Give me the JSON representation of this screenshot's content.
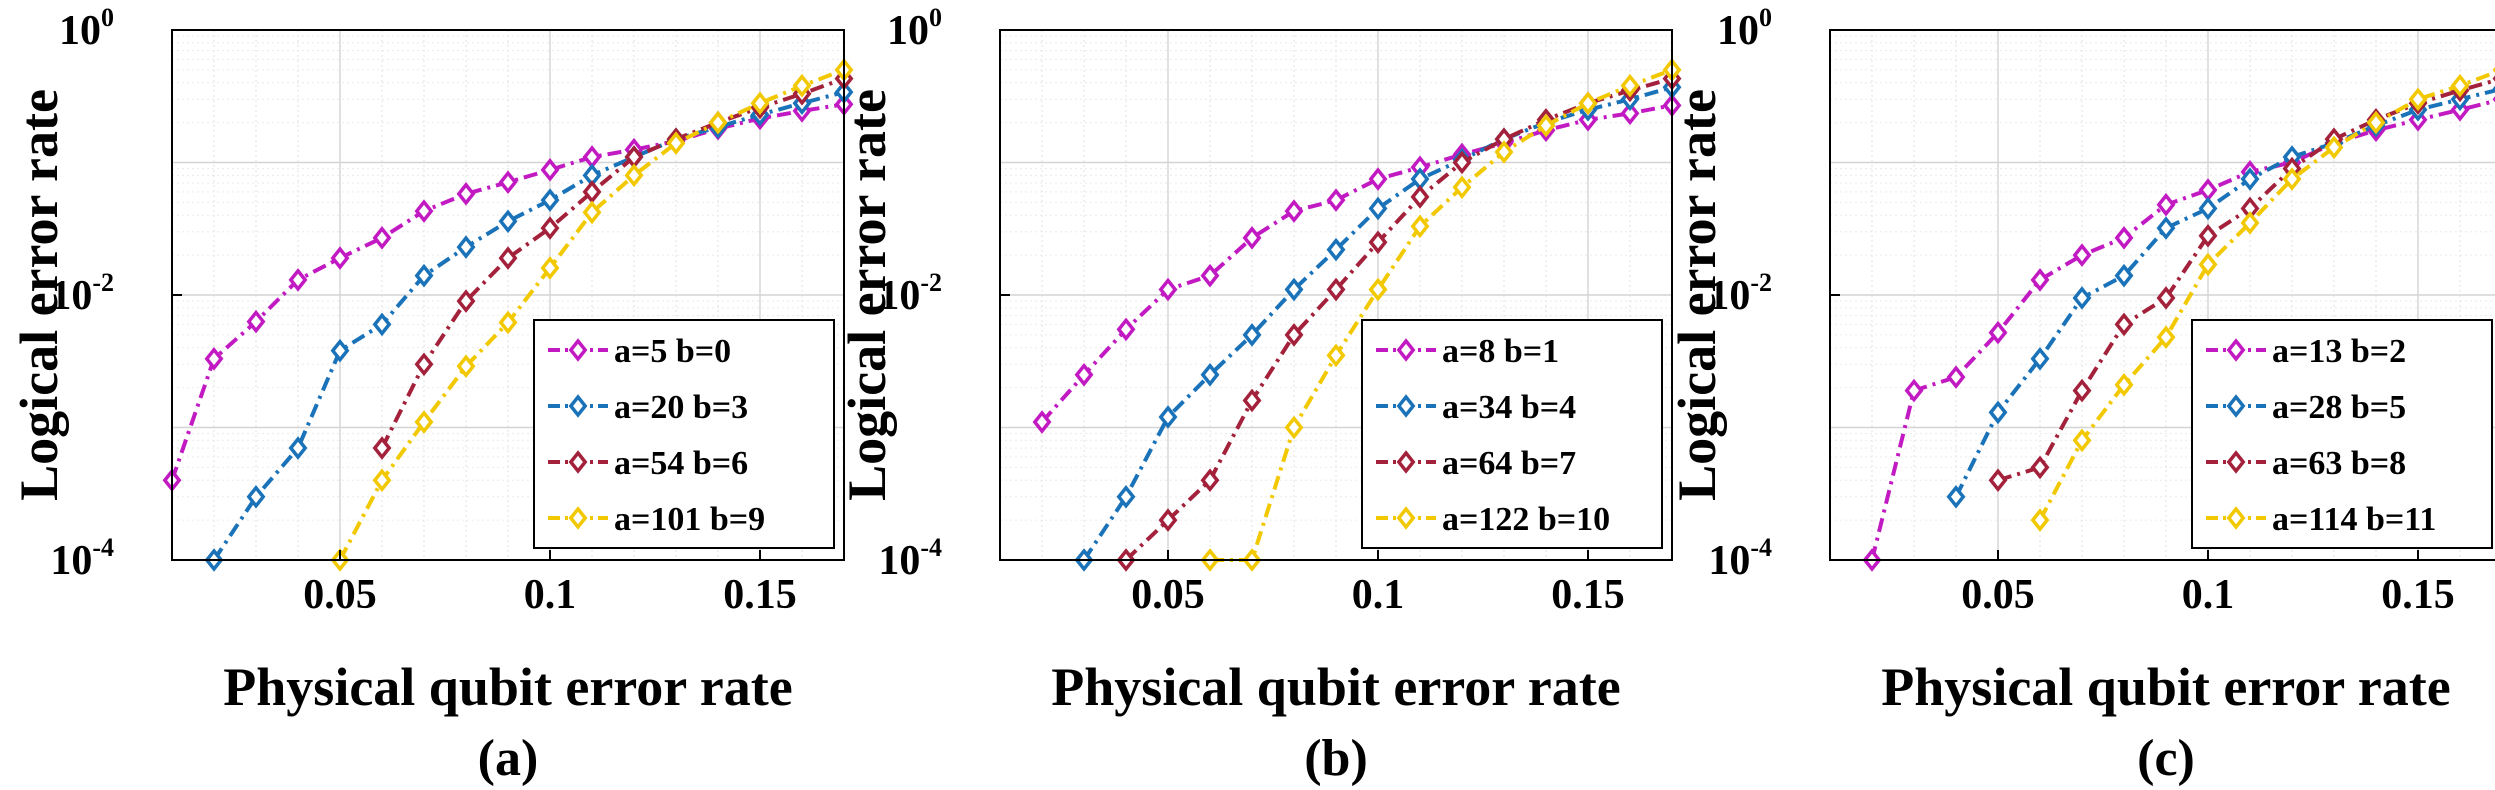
{
  "chart_data": [
    {
      "type": "line",
      "panel_label": "(a)",
      "xlabel": "Physical qubit error rate",
      "ylabel": "Logical error rate",
      "xscale": "linear",
      "yscale": "log",
      "xlim": [
        0.01,
        0.17
      ],
      "ylim": [
        0.0001,
        1
      ],
      "xticks": [
        0.05,
        0.1,
        0.15
      ],
      "xtick_labels": [
        "0.05",
        "0.1",
        "0.15"
      ],
      "yticks": [
        {
          "base": "10",
          "exp": "-4"
        },
        {
          "base": "10",
          "exp": "-2"
        },
        {
          "base": "10",
          "exp": "0"
        }
      ],
      "grid": true,
      "legend_position": "lower-right",
      "series": [
        {
          "name": "a=5 b=0",
          "color": "#C21AC2",
          "marker": "diamond",
          "line": "dash-dot",
          "x": [
            0.01,
            0.02,
            0.03,
            0.04,
            0.05,
            0.06,
            0.07,
            0.08,
            0.09,
            0.1,
            0.11,
            0.12,
            0.13,
            0.14,
            0.15,
            0.16,
            0.17
          ],
          "y": [
            0.0004,
            0.0033,
            0.0063,
            0.013,
            0.019,
            0.027,
            0.043,
            0.058,
            0.071,
            0.088,
            0.11,
            0.125,
            0.145,
            0.18,
            0.215,
            0.245,
            0.275
          ]
        },
        {
          "name": "a=20 b=3",
          "color": "#1A72B8",
          "marker": "diamond",
          "line": "dash-dot",
          "x": [
            0.02,
            0.03,
            0.04,
            0.05,
            0.06,
            0.07,
            0.08,
            0.09,
            0.1,
            0.11,
            0.12,
            0.13,
            0.14,
            0.15,
            0.16,
            0.17
          ],
          "y": [
            0.0001,
            0.0003,
            0.0007,
            0.0038,
            0.006,
            0.014,
            0.023,
            0.036,
            0.052,
            0.08,
            0.11,
            0.15,
            0.185,
            0.23,
            0.28,
            0.34
          ]
        },
        {
          "name": "a=54 b=6",
          "color": "#A3213A",
          "marker": "diamond",
          "line": "dash-dot",
          "x": [
            0.06,
            0.07,
            0.08,
            0.09,
            0.1,
            0.11,
            0.12,
            0.13,
            0.14,
            0.15,
            0.16,
            0.17
          ],
          "y": [
            0.0007,
            0.003,
            0.009,
            0.019,
            0.032,
            0.06,
            0.11,
            0.15,
            0.2,
            0.26,
            0.33,
            0.43
          ]
        },
        {
          "name": "a=101 b=9",
          "color": "#F2C800",
          "marker": "diamond",
          "line": "dash-dot",
          "x": [
            0.05,
            0.06,
            0.07,
            0.08,
            0.09,
            0.1,
            0.11,
            0.12,
            0.13,
            0.14,
            0.15,
            0.16,
            0.17
          ],
          "y": [
            0.0001,
            0.0004,
            0.0011,
            0.0029,
            0.0062,
            0.016,
            0.042,
            0.08,
            0.14,
            0.2,
            0.28,
            0.38,
            0.5
          ]
        }
      ]
    },
    {
      "type": "line",
      "panel_label": "(b)",
      "xlabel": "Physical qubit error rate",
      "ylabel": "Logical error rate",
      "xscale": "linear",
      "yscale": "log",
      "xlim": [
        0.01,
        0.17
      ],
      "ylim": [
        0.0001,
        1
      ],
      "xticks": [
        0.05,
        0.1,
        0.15
      ],
      "xtick_labels": [
        "0.05",
        "0.1",
        "0.15"
      ],
      "yticks": [
        {
          "base": "10",
          "exp": "-4"
        },
        {
          "base": "10",
          "exp": "-2"
        },
        {
          "base": "10",
          "exp": "0"
        }
      ],
      "grid": true,
      "legend_position": "lower-right",
      "series": [
        {
          "name": "a=8 b=1",
          "color": "#C21AC2",
          "marker": "diamond",
          "line": "dash-dot",
          "x": [
            0.02,
            0.03,
            0.04,
            0.05,
            0.06,
            0.07,
            0.08,
            0.09,
            0.1,
            0.11,
            0.12,
            0.13,
            0.14,
            0.15,
            0.16,
            0.17
          ],
          "y": [
            0.0011,
            0.0025,
            0.0055,
            0.011,
            0.014,
            0.027,
            0.043,
            0.052,
            0.075,
            0.092,
            0.115,
            0.14,
            0.175,
            0.21,
            0.235,
            0.27
          ]
        },
        {
          "name": "a=34 b=4",
          "color": "#1A72B8",
          "marker": "diamond",
          "line": "dash-dot",
          "x": [
            0.03,
            0.04,
            0.05,
            0.06,
            0.07,
            0.08,
            0.09,
            0.1,
            0.11,
            0.12,
            0.13,
            0.14,
            0.15,
            0.16,
            0.17
          ],
          "y": [
            0.0001,
            0.0003,
            0.0012,
            0.0025,
            0.005,
            0.011,
            0.022,
            0.045,
            0.075,
            0.105,
            0.15,
            0.2,
            0.25,
            0.3,
            0.37
          ]
        },
        {
          "name": "a=64 b=7",
          "color": "#A3213A",
          "marker": "diamond",
          "line": "dash-dot",
          "x": [
            0.04,
            0.05,
            0.06,
            0.07,
            0.08,
            0.09,
            0.1,
            0.11,
            0.12,
            0.13,
            0.14,
            0.15,
            0.16,
            0.17
          ],
          "y": [
            0.0001,
            0.0002,
            0.0004,
            0.0016,
            0.005,
            0.011,
            0.025,
            0.055,
            0.1,
            0.15,
            0.21,
            0.28,
            0.35,
            0.43
          ]
        },
        {
          "name": "a=122 b=10",
          "color": "#F2C800",
          "marker": "diamond",
          "line": "dash-dot",
          "x": [
            0.06,
            0.07,
            0.08,
            0.09,
            0.1,
            0.11,
            0.12,
            0.13,
            0.14,
            0.15,
            0.16,
            0.17
          ],
          "y": [
            0.0001,
            0.0001,
            0.001,
            0.0035,
            0.011,
            0.033,
            0.065,
            0.12,
            0.19,
            0.28,
            0.38,
            0.5
          ]
        }
      ]
    },
    {
      "type": "line",
      "panel_label": "(c)",
      "xlabel": "Physical qubit error rate",
      "ylabel": "Logical error rate",
      "xscale": "linear",
      "yscale": "log",
      "xlim": [
        0.01,
        0.17
      ],
      "ylim": [
        0.0001,
        1
      ],
      "xticks": [
        0.05,
        0.1,
        0.15
      ],
      "xtick_labels": [
        "0.05",
        "0.1",
        "0.15"
      ],
      "yticks": [
        {
          "base": "10",
          "exp": "-4"
        },
        {
          "base": "10",
          "exp": "-2"
        },
        {
          "base": "10",
          "exp": "0"
        }
      ],
      "grid": true,
      "legend_position": "lower-right",
      "series": [
        {
          "name": "a=13 b=2",
          "color": "#C21AC2",
          "marker": "diamond",
          "line": "dash-dot",
          "x": [
            0.02,
            0.03,
            0.04,
            0.05,
            0.06,
            0.07,
            0.08,
            0.09,
            0.1,
            0.11,
            0.12,
            0.13,
            0.14,
            0.15,
            0.16,
            0.17
          ],
          "y": [
            0.0001,
            0.0019,
            0.0024,
            0.0052,
            0.013,
            0.02,
            0.027,
            0.048,
            0.062,
            0.085,
            0.1,
            0.14,
            0.175,
            0.21,
            0.25,
            0.3
          ]
        },
        {
          "name": "a=28 b=5",
          "color": "#1A72B8",
          "marker": "diamond",
          "line": "dash-dot",
          "x": [
            0.04,
            0.05,
            0.06,
            0.07,
            0.08,
            0.09,
            0.1,
            0.11,
            0.12,
            0.13,
            0.14,
            0.15,
            0.16,
            0.17
          ],
          "y": [
            0.0003,
            0.0013,
            0.0033,
            0.0095,
            0.014,
            0.032,
            0.045,
            0.075,
            0.11,
            0.14,
            0.19,
            0.25,
            0.3,
            0.36
          ]
        },
        {
          "name": "a=63 b=8",
          "color": "#A3213A",
          "marker": "diamond",
          "line": "dash-dot",
          "x": [
            0.05,
            0.06,
            0.07,
            0.08,
            0.09,
            0.1,
            0.11,
            0.12,
            0.13,
            0.14,
            0.15,
            0.16,
            0.17
          ],
          "y": [
            0.0004,
            0.0005,
            0.0019,
            0.006,
            0.0095,
            0.028,
            0.045,
            0.09,
            0.15,
            0.21,
            0.28,
            0.35,
            0.43
          ]
        },
        {
          "name": "a=114 b=11",
          "color": "#F2C800",
          "marker": "diamond",
          "line": "dash-dot",
          "x": [
            0.06,
            0.07,
            0.08,
            0.09,
            0.1,
            0.11,
            0.12,
            0.13,
            0.14,
            0.15,
            0.16,
            0.17
          ],
          "y": [
            0.0002,
            0.0008,
            0.0021,
            0.0048,
            0.017,
            0.035,
            0.075,
            0.13,
            0.2,
            0.3,
            0.38,
            0.5
          ]
        }
      ]
    }
  ]
}
